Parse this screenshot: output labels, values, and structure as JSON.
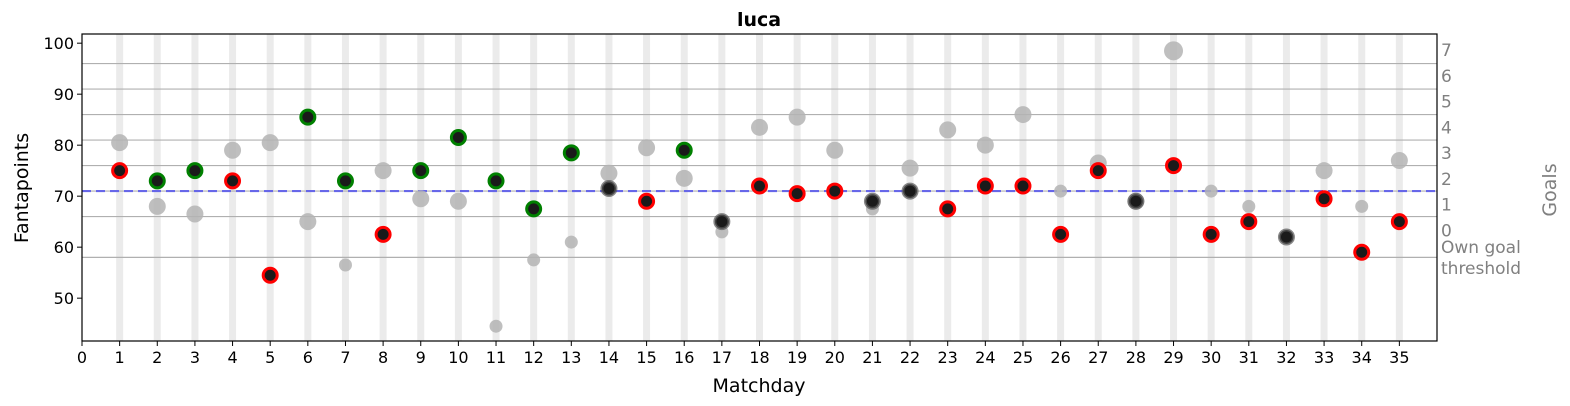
{
  "chart_data": {
    "type": "scatter",
    "title": "luca",
    "xlabel": "Matchday",
    "ylabel": "Fantapoints",
    "y2label": "Goals",
    "xlim": [
      0,
      36
    ],
    "ylim": [
      41.6,
      101.8
    ],
    "xticks": [
      0,
      1,
      2,
      3,
      4,
      5,
      6,
      7,
      8,
      9,
      10,
      11,
      12,
      13,
      14,
      15,
      16,
      17,
      18,
      19,
      20,
      21,
      22,
      23,
      24,
      25,
      26,
      27,
      28,
      29,
      30,
      31,
      32,
      33,
      34,
      35
    ],
    "yticks": [
      50,
      60,
      70,
      80,
      90,
      100
    ],
    "goal_ticks": [
      0,
      1,
      2,
      3,
      4,
      5,
      6,
      7
    ],
    "goal_gridlines": [
      66,
      71,
      76,
      81,
      86,
      91,
      96
    ],
    "own_goal_threshold": {
      "value": 58,
      "label_line1": "Own goal",
      "label_line2": "threshold"
    },
    "mean_line": 71,
    "colors": {
      "mean_line": "#5555ee",
      "good": "#008000",
      "bad": "#ff0000",
      "neutral": "#555555",
      "secondary": "#b4b4b4",
      "band": "#ebebeb",
      "grid": "#b0b0b0",
      "axis2": "#808080"
    },
    "matchdays": [
      1,
      2,
      3,
      4,
      5,
      6,
      7,
      8,
      9,
      10,
      11,
      12,
      13,
      14,
      15,
      16,
      17,
      18,
      19,
      20,
      21,
      22,
      23,
      24,
      25,
      26,
      27,
      28,
      29,
      30,
      31,
      32,
      33,
      34,
      35
    ],
    "fantapoints": [
      75,
      73,
      75,
      73,
      54.5,
      85.5,
      73,
      62.5,
      75,
      81.5,
      73,
      67.5,
      78.5,
      71.5,
      69,
      79,
      65,
      72,
      70.5,
      71,
      69,
      71,
      67.5,
      72,
      72,
      62.5,
      75,
      69,
      76,
      62.5,
      65,
      62,
      69.5,
      59,
      65
    ],
    "outcome": [
      "bad",
      "good",
      "good",
      "bad",
      "bad",
      "good",
      "good",
      "bad",
      "good",
      "good",
      "good",
      "good",
      "good",
      "neutral",
      "bad",
      "good",
      "neutral",
      "bad",
      "bad",
      "bad",
      "neutral",
      "neutral",
      "bad",
      "bad",
      "bad",
      "bad",
      "bad",
      "neutral",
      "bad",
      "bad",
      "bad",
      "neutral",
      "bad",
      "bad",
      "bad"
    ],
    "secondary_points": [
      80.5,
      68,
      66.5,
      79,
      80.5,
      65,
      56.5,
      75,
      69.5,
      69,
      44.5,
      57.5,
      61,
      74.5,
      79.5,
      73.5,
      63,
      83.5,
      85.5,
      79,
      67.5,
      75.5,
      83,
      80,
      86,
      71,
      76.5,
      69,
      98.5,
      71,
      68,
      62,
      75,
      68,
      77
    ],
    "secondary_size": [
      "large",
      "large",
      "large",
      "large",
      "large",
      "large",
      "small",
      "large",
      "large",
      "large",
      "small",
      "small",
      "small",
      "large",
      "large",
      "large",
      "small",
      "large",
      "large",
      "large",
      "small",
      "large",
      "large",
      "large",
      "large",
      "small",
      "large",
      "large",
      "xlarge",
      "small",
      "small",
      "small",
      "large",
      "small",
      "large"
    ]
  }
}
